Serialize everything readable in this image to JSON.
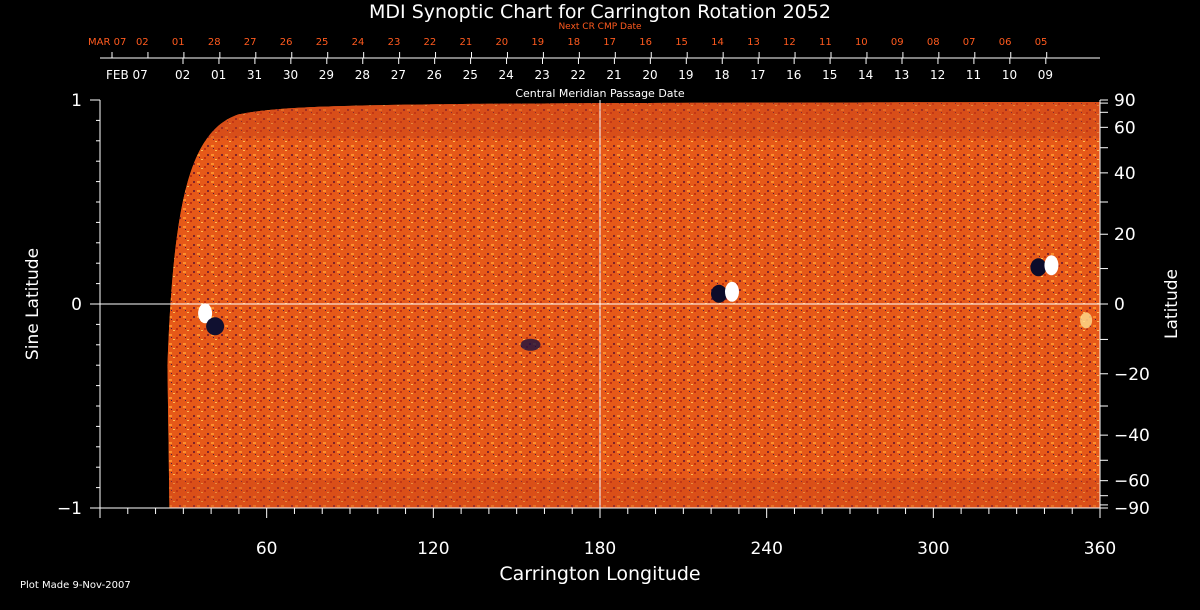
{
  "header": {
    "title": "MDI Synoptic Chart for Carrington Rotation 2052",
    "next_cr_label": "Next CR CMP Date",
    "cmp_axis_label": "Central Meridian Passage Date"
  },
  "footer": {
    "plot_made": "Plot Made  9-Nov-2007"
  },
  "colors": {
    "background": "#000000",
    "axes": "#ffffff",
    "next_cr_text": "#ff5a1e",
    "field_base": "#e8541a"
  },
  "chart_data": {
    "type": "heatmap",
    "title": "MDI Synoptic Chart for Carrington Rotation 2052",
    "xlabel": "Carrington Longitude",
    "ylabel": "Sine Latitude",
    "y2label": "Latitude",
    "xlim": [
      0,
      360
    ],
    "ylim": [
      -1,
      1
    ],
    "x_ticks": [
      60,
      120,
      180,
      240,
      300,
      360
    ],
    "y_ticks": [
      -1,
      0,
      1
    ],
    "y_tick_labels": [
      "−1",
      "0",
      "1"
    ],
    "latitude_ticks": [
      -90,
      -60,
      -40,
      -20,
      0,
      20,
      40,
      60,
      90
    ],
    "crosshair": {
      "longitude": 180,
      "sine_latitude": 0
    },
    "data_start_longitude": 25,
    "next_cr_dates": [
      "MAR 07",
      "02",
      "01",
      "28",
      "27",
      "26",
      "25",
      "24",
      "23",
      "22",
      "21",
      "20",
      "19",
      "18",
      "17",
      "16",
      "15",
      "14",
      "13",
      "12",
      "11",
      "10",
      "09",
      "08",
      "07",
      "06",
      "05"
    ],
    "cmp_dates": [
      "FEB 07",
      "02",
      "01",
      "31",
      "30",
      "29",
      "28",
      "27",
      "26",
      "25",
      "24",
      "23",
      "22",
      "21",
      "20",
      "19",
      "18",
      "17",
      "16",
      "15",
      "14",
      "13",
      "12",
      "11",
      "10",
      "09"
    ],
    "active_regions": [
      {
        "longitude": 40,
        "sine_latitude": -0.07,
        "polarity_pair": "white-dark"
      },
      {
        "longitude": 225,
        "sine_latitude": 0.05,
        "polarity_pair": "dark-white"
      },
      {
        "longitude": 340,
        "sine_latitude": 0.18,
        "polarity_pair": "dark-white"
      },
      {
        "longitude": 155,
        "sine_latitude": -0.2,
        "polarity_pair": "dark"
      },
      {
        "longitude": 355,
        "sine_latitude": -0.08,
        "polarity_pair": "white"
      }
    ]
  }
}
